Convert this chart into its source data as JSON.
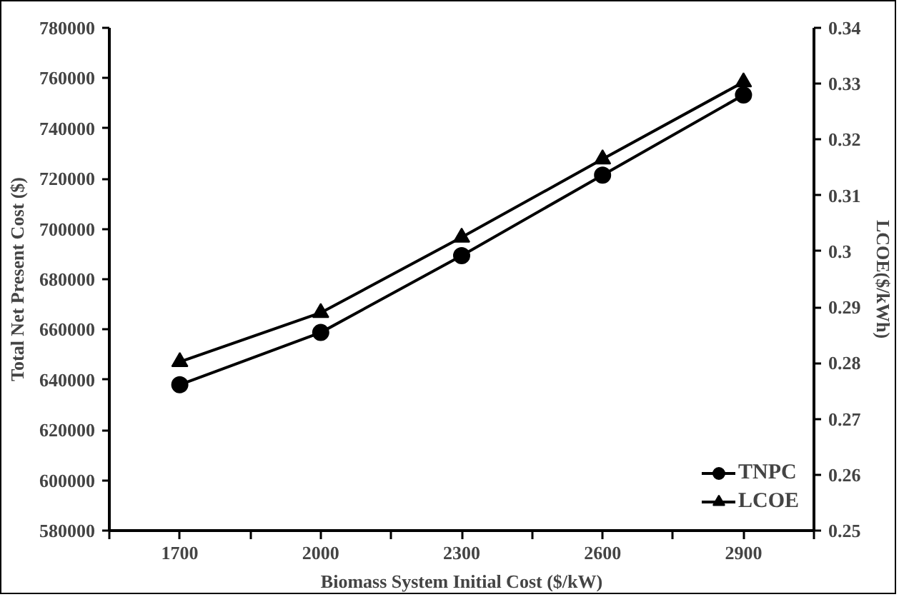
{
  "chart_data": {
    "type": "line",
    "xlabel": "Biomass System Initial Cost ($/kW)",
    "ylabel": "Total Net Present Cost ($)",
    "y2label": "LCOE($/kWh)",
    "categories": [
      "1700",
      "2000",
      "2300",
      "2600",
      "2900"
    ],
    "series": [
      {
        "name": "TNPC",
        "color": "#000000",
        "marker": "circle",
        "values": [
          638000,
          658800,
          689400,
          721400,
          753300
        ]
      },
      {
        "name": "LCOE",
        "color": "#000000",
        "marker": "triangle",
        "axis": "y2",
        "values": [
          0.2802,
          0.289,
          0.3025,
          0.3165,
          0.3303
        ]
      }
    ],
    "ylim": [
      580000,
      780000
    ],
    "yticks": [
      580000,
      600000,
      620000,
      640000,
      660000,
      680000,
      700000,
      720000,
      740000,
      760000,
      780000
    ],
    "y2lim": [
      0.25,
      0.34
    ],
    "y2ticks": [
      0.25,
      0.26,
      0.27,
      0.28,
      0.29,
      0.3,
      0.31,
      0.32,
      0.33,
      0.34
    ],
    "grid": false,
    "legend": "bottom right",
    "line_style": "solid"
  }
}
